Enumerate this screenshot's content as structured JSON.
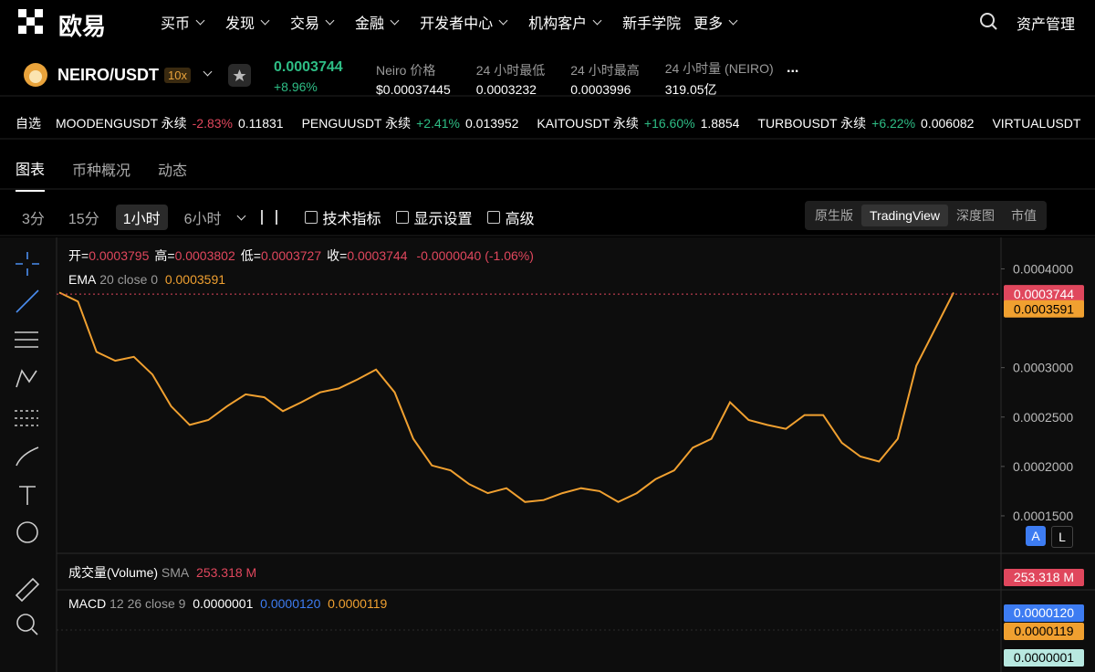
{
  "nav": {
    "logo": "欧易",
    "menu": [
      "买币",
      "发现",
      "交易",
      "金融",
      "开发者中心",
      "机构客户",
      "新手学院",
      "更多"
    ],
    "assets": "资产管理"
  },
  "ticker": {
    "pair": "NEIRO/USDT",
    "leverage": "10x",
    "price": "0.0003744",
    "change": "+8.96%",
    "stats": [
      {
        "label": "Neiro 价格",
        "value": "$0.00037445"
      },
      {
        "label": "24 小时最低",
        "value": "0.0003232"
      },
      {
        "label": "24 小时最高",
        "value": "0.0003996"
      },
      {
        "label": "24 小时量 (NEIRO)",
        "value": "319.05亿"
      }
    ],
    "more": "..."
  },
  "watchlist": {
    "label": "自选",
    "items": [
      {
        "symbol": "MOODENGUSDT 永续",
        "change": "-2.83%",
        "price": "0.11831"
      },
      {
        "symbol": "PENGUUSDT 永续",
        "change": "+2.41%",
        "price": "0.013952"
      },
      {
        "symbol": "KAITOUSDT 永续",
        "change": "+16.60%",
        "price": "1.8854"
      },
      {
        "symbol": "TURBOUSDT 永续",
        "change": "+6.22%",
        "price": "0.006082"
      },
      {
        "symbol": "VIRTUALUSDT"
      }
    ]
  },
  "tabs": [
    "图表",
    "币种概况",
    "动态"
  ],
  "toolbar": {
    "intervals": [
      "3分",
      "15分",
      "1小时",
      "6小时"
    ],
    "tools": [
      "技术指标",
      "显示设置",
      "高级"
    ],
    "views": [
      "原生版",
      "TradingView",
      "深度图",
      "市值"
    ]
  },
  "indicators": {
    "ohlc": [
      {
        "label": "开=",
        "value": "0.0003795"
      },
      {
        "label": "高=",
        "value": "0.0003802"
      },
      {
        "label": "低=",
        "value": "0.0003727"
      },
      {
        "label": "收=",
        "value": "0.0003744"
      }
    ],
    "change": "-0.0000040 (-1.06%)",
    "ema": {
      "name": "EMA",
      "params": "20 close 0",
      "value": "0.0003591"
    },
    "volume": {
      "name": "成交量(Volume)",
      "params": "SMA",
      "value": "253.318 M",
      "tag": "253.318 M"
    },
    "macd": {
      "name": "MACD",
      "params": "12 26 close 9",
      "values": [
        "0.0000001",
        "0.0000120",
        "0.0000119"
      ],
      "tags": [
        "0.0000120",
        "0.0000119",
        "0.0000001"
      ]
    },
    "scale_buttons": [
      "A",
      "L"
    ]
  },
  "chart_data": {
    "type": "line",
    "color": "#f0a030",
    "values": [
      0.000376,
      0.000367,
      0.000316,
      0.000307,
      0.000311,
      0.000293,
      0.000261,
      0.000242,
      0.000247,
      0.000261,
      0.000273,
      0.00027,
      0.000256,
      0.000265,
      0.000275,
      0.000279,
      0.000288,
      0.000298,
      0.000275,
      0.000228,
      0.000201,
      0.000196,
      0.000182,
      0.000173,
      0.000178,
      0.000164,
      0.000166,
      0.000173,
      0.000178,
      0.000175,
      0.000164,
      0.000173,
      0.000187,
      0.000196,
      0.000219,
      0.000228,
      0.000265,
      0.000247,
      0.000242,
      0.000238,
      0.000252,
      0.000252,
      0.000224,
      0.00021,
      0.000205,
      0.000228,
      0.000302,
      0.000339,
      0.000376
    ],
    "ylim": [
      0.000113,
      0.00043
    ],
    "yticks": [
      {
        "value": 0.00015,
        "label": "0.0001500"
      },
      {
        "value": 0.0002,
        "label": "0.0002000"
      },
      {
        "value": 0.00025,
        "label": "0.0002500"
      },
      {
        "value": 0.0003,
        "label": "0.0003000"
      },
      {
        "value": 0.0004,
        "label": "0.0004000"
      }
    ],
    "price_tags": [
      {
        "value": 0.0003744,
        "color": "#e0475d"
      },
      {
        "value": 0.0003591,
        "color": "#f0a030"
      }
    ],
    "grid": false
  }
}
